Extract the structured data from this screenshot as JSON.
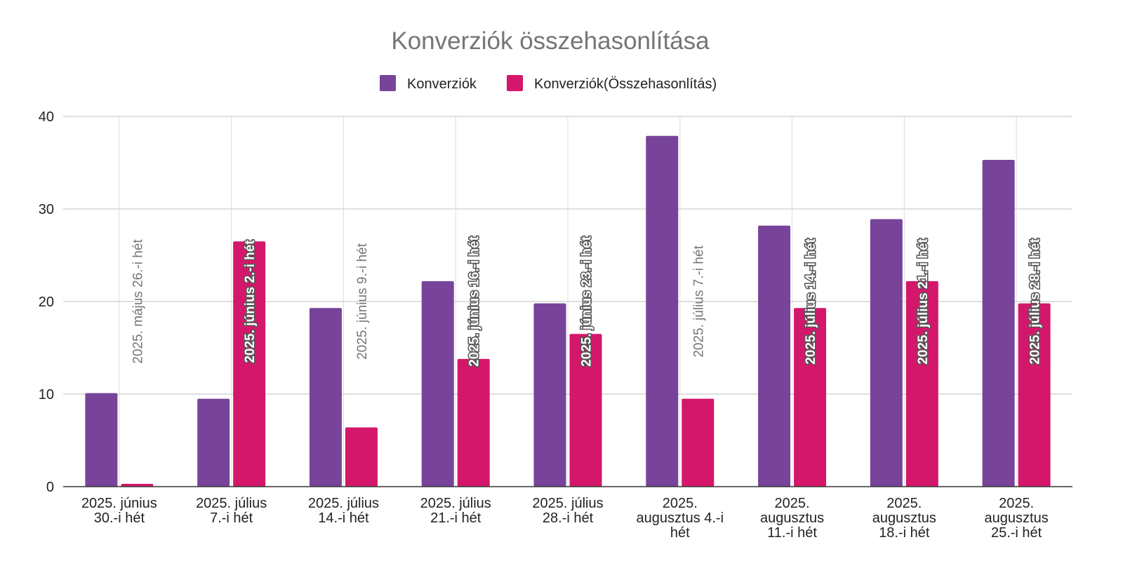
{
  "chart_data": {
    "type": "bar",
    "title": "Konverziók összehasonlítása",
    "xlabel": "",
    "ylabel": "",
    "ylim": [
      0,
      40
    ],
    "yticks": [
      0,
      10,
      20,
      30,
      40
    ],
    "grid": true,
    "legend_position": "top",
    "categories": [
      "2025. június 30.-i hét",
      "2025. július 7.-i hét",
      "2025. július 14.-i hét",
      "2025. július 21.-i hét",
      "2025. július 28.-i hét",
      "2025. augusztus 4.-i hét",
      "2025. augusztus 11.-i hét",
      "2025. augusztus 18.-i hét",
      "2025. augusztus 25.-i hét"
    ],
    "category_lines": [
      [
        "2025. június",
        "30.-i hét"
      ],
      [
        "2025. július",
        "7.-i hét"
      ],
      [
        "2025. július",
        "14.-i hét"
      ],
      [
        "2025. július",
        "21.-i hét"
      ],
      [
        "2025. július",
        "28.-i hét"
      ],
      [
        "2025.",
        "augusztus 4.-i",
        "hét"
      ],
      [
        "2025.",
        "augusztus",
        "11.-i hét"
      ],
      [
        "2025.",
        "augusztus",
        "18.-i hét"
      ],
      [
        "2025.",
        "augusztus",
        "25.-i hét"
      ]
    ],
    "series": [
      {
        "name": "Konverziók",
        "color": "#77449a",
        "values": [
          10.1,
          9.5,
          19.3,
          22.2,
          19.8,
          37.9,
          28.2,
          28.9,
          35.3
        ]
      },
      {
        "name": "Konverziók(Összehasonlítás)",
        "color": "#d4176b",
        "values": [
          0.3,
          26.5,
          6.4,
          13.8,
          16.5,
          9.5,
          19.3,
          22.2,
          19.8
        ],
        "comparison_periods": [
          "2025. május 26.-i hét",
          "2025. június 2.-i hét",
          "2025. június 9.-i hét",
          "2025. június 16.-i hét",
          "2025. június 23.-i hét",
          "2025. július 7.-i hét",
          "2025. július 14.-i hét",
          "2025. július 21.-i hét",
          "2025. július 28.-i hét"
        ]
      }
    ]
  },
  "colors": {
    "grid": "#cccccc",
    "axis": "#333333",
    "title": "#757575",
    "label_outside": "#757575",
    "label_inside": "#ffffff",
    "label_outline": "#555555"
  }
}
